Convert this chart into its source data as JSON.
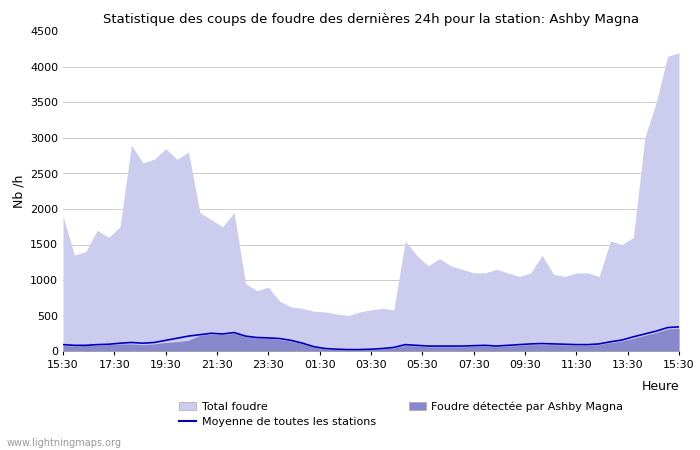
{
  "title": "Statistique des coups de foudre des dernières 24h pour la station: Ashby Magna",
  "ylabel": "Nb /h",
  "ylim": [
    0,
    4500
  ],
  "yticks": [
    0,
    500,
    1000,
    1500,
    2000,
    2500,
    3000,
    3500,
    4000,
    4500
  ],
  "x_labels": [
    "15:30",
    "17:30",
    "19:30",
    "21:30",
    "23:30",
    "01:30",
    "03:30",
    "05:30",
    "07:30",
    "09:30",
    "11:30",
    "13:30",
    "15:30"
  ],
  "heure_label": "Heure",
  "watermark": "www.lightningmaps.org",
  "color_total": "#ccccee",
  "color_detected": "#8888cc",
  "color_avg_line": "#0000bb",
  "legend_total": "Total foudre",
  "legend_detected": "Foudre détectée par Ashby Magna",
  "legend_avg": "Moyenne de toutes les stations",
  "total_foudre": [
    1900,
    1350,
    1400,
    1700,
    1600,
    1750,
    2900,
    2650,
    2700,
    2850,
    2700,
    2800,
    1950,
    1850,
    1750,
    1950,
    950,
    850,
    900,
    700,
    620,
    600,
    560,
    550,
    520,
    500,
    550,
    580,
    600,
    580,
    1550,
    1350,
    1200,
    1300,
    1200,
    1150,
    1100,
    1100,
    1150,
    1100,
    1050,
    1100,
    1350,
    1080,
    1050,
    1100,
    1100,
    1050,
    1550,
    1500,
    1600,
    3000,
    3500,
    4150,
    4200
  ],
  "detected": [
    80,
    70,
    80,
    80,
    90,
    100,
    100,
    90,
    100,
    120,
    130,
    150,
    220,
    240,
    230,
    250,
    200,
    180,
    180,
    160,
    140,
    100,
    50,
    30,
    20,
    15,
    15,
    20,
    30,
    40,
    80,
    70,
    60,
    60,
    60,
    60,
    65,
    70,
    60,
    70,
    80,
    90,
    90,
    90,
    85,
    80,
    80,
    90,
    120,
    140,
    180,
    220,
    260,
    310,
    320
  ],
  "avg_line": [
    90,
    80,
    80,
    90,
    95,
    110,
    120,
    110,
    120,
    150,
    180,
    210,
    230,
    250,
    240,
    260,
    210,
    190,
    185,
    175,
    150,
    110,
    60,
    35,
    25,
    20,
    20,
    25,
    35,
    50,
    90,
    80,
    70,
    70,
    70,
    70,
    75,
    80,
    70,
    80,
    90,
    100,
    105,
    100,
    95,
    90,
    90,
    100,
    130,
    155,
    200,
    240,
    280,
    330,
    340
  ]
}
